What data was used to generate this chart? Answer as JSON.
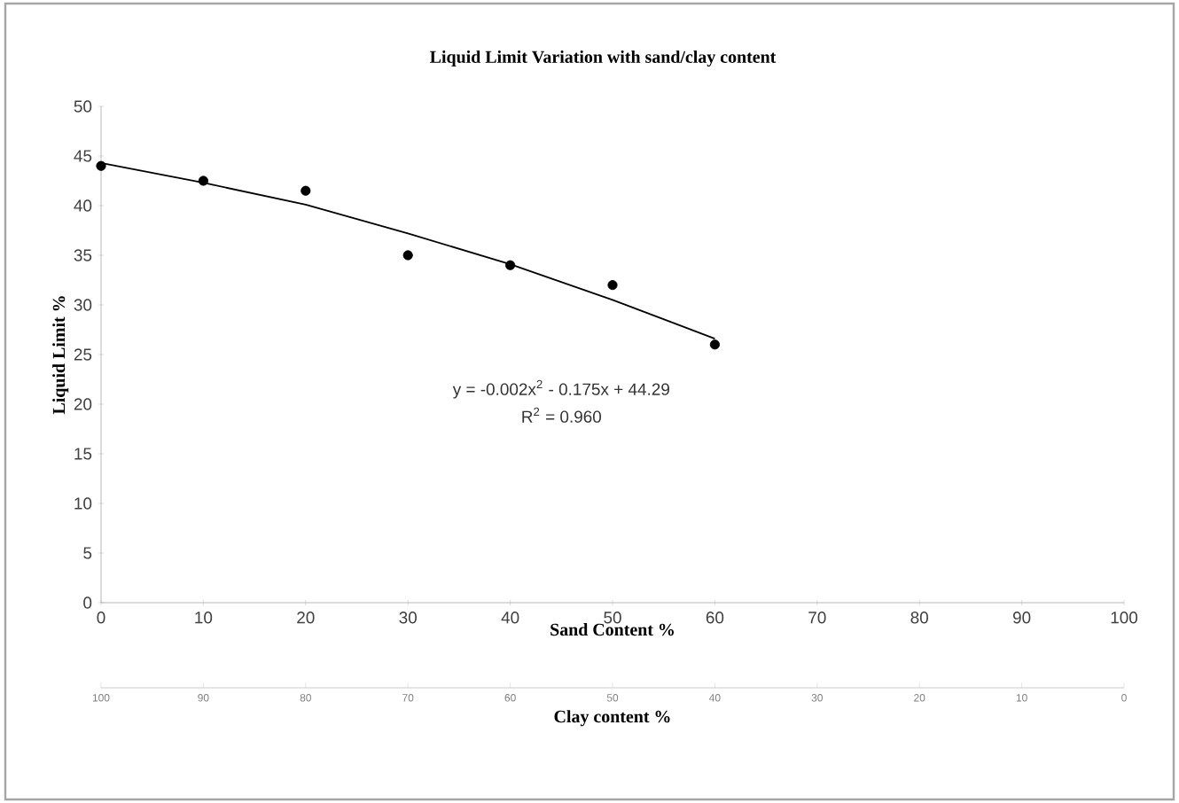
{
  "chart_data": {
    "type": "scatter",
    "title": "Liquid Limit Variation with sand/clay content",
    "xlabel": "Sand Content %",
    "ylabel": "Liquid Limit %",
    "x2label": "Clay content %",
    "xlim": [
      0,
      100
    ],
    "xticks": [
      0,
      10,
      20,
      30,
      40,
      50,
      60,
      70,
      80,
      90,
      100
    ],
    "x2lim": [
      100,
      0
    ],
    "x2ticks": [
      100,
      90,
      80,
      70,
      60,
      50,
      40,
      30,
      20,
      10,
      0
    ],
    "ylim": [
      0,
      50
    ],
    "yticks": [
      0,
      5,
      10,
      15,
      20,
      25,
      30,
      35,
      40,
      45,
      50
    ],
    "grid": false,
    "legend": false,
    "series": [
      {
        "type": "scatter",
        "marker": "circle",
        "color": "#000000",
        "x": [
          0,
          10,
          20,
          30,
          40,
          50,
          60
        ],
        "values": [
          44,
          42.5,
          41.5,
          35,
          34,
          32,
          26
        ]
      },
      {
        "type": "line",
        "marker": "none",
        "line_style": "solid",
        "color": "#000000",
        "x": [
          0,
          10,
          20,
          30,
          40,
          50,
          60
        ],
        "values": [
          44.3,
          42.3,
          40.1,
          37.2,
          34.1,
          30.5,
          26.6
        ]
      }
    ],
    "annotations": [
      "y = -0.002x$^{2}$ - 0.175x + 44.29",
      "R$^{2}$ = 0.960"
    ]
  }
}
